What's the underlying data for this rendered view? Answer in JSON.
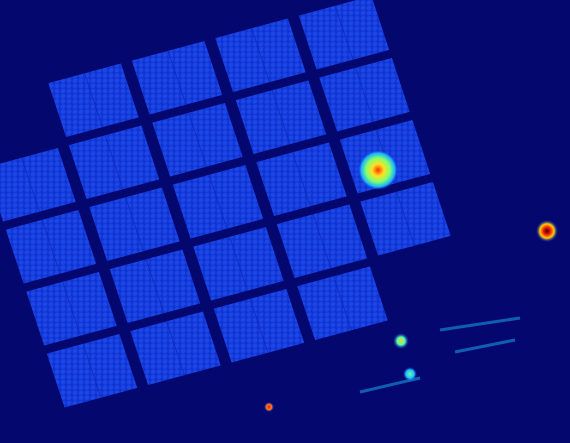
{
  "image": {
    "kind": "false-color detector map",
    "colormap": "jet",
    "colors": {
      "background": "#04086e",
      "gap": "#141c7a",
      "module_base": "#1238d8",
      "module_light": "#2a6cff",
      "hot_spot": "#ff2000",
      "warm_spot": "#ffe020"
    },
    "layout": {
      "rows": 5,
      "cols": 5,
      "missing_modules": [
        "0-0",
        "4-4"
      ]
    },
    "hotspots": [
      {
        "label": "bright-source",
        "module": "1-3",
        "peak": "yellow-red"
      },
      {
        "label": "edge-source",
        "module": "1-4",
        "peak": "red-black"
      },
      {
        "label": "small-source-upper",
        "module": "4-2",
        "peak": "yellow"
      },
      {
        "label": "small-source-lower",
        "module": "4-2",
        "peak": "green"
      },
      {
        "label": "bottom-source",
        "module": "4-1",
        "peak": "red"
      }
    ]
  }
}
